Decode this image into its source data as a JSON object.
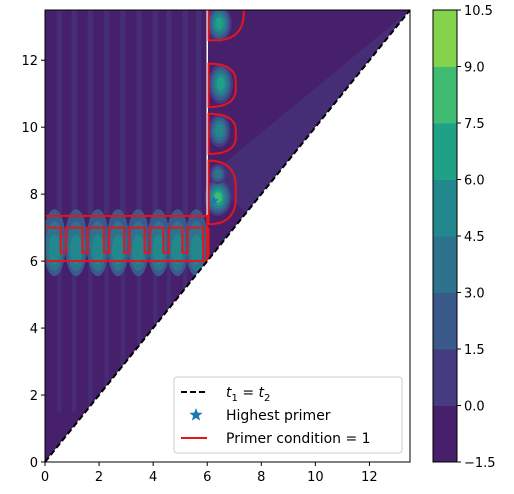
{
  "chart_data": {
    "type": "heatmap",
    "title": "",
    "xlabel": "",
    "ylabel": "",
    "xlim": [
      0,
      13.5
    ],
    "ylim": [
      0,
      13.5
    ],
    "x_ticks": [
      "0",
      "2",
      "4",
      "6",
      "8",
      "10",
      "12"
    ],
    "y_ticks": [
      "0",
      "2",
      "4",
      "6",
      "8",
      "10",
      "12"
    ],
    "colorbar": {
      "levels": [
        -1.5,
        0.0,
        1.5,
        3.0,
        4.5,
        6.0,
        7.5,
        9.0,
        10.5
      ],
      "tick_labels": [
        "−1.5",
        "0.0",
        "1.5",
        "3.0",
        "4.5",
        "6.0",
        "7.5",
        "9.0",
        "10.5"
      ],
      "band_colors": [
        "#46206a",
        "#453b82",
        "#3b5a8c",
        "#2e738e",
        "#23888d",
        "#1fa187",
        "#3fbc72",
        "#84d44b",
        "#cde11d"
      ],
      "colormap": "viridis"
    },
    "diagonal": {
      "from": [
        0,
        0
      ],
      "to": [
        13.5,
        13.5
      ],
      "style": "dashed",
      "color": "#000000"
    },
    "primer_boundary": {
      "color": "#e8141b",
      "horizontal_band": {
        "x": [
          0,
          6.0
        ],
        "y": [
          6.0,
          7.35
        ]
      },
      "vertical_band": {
        "x": [
          6.0,
          7.3
        ],
        "y": [
          6.0,
          13.5
        ]
      }
    },
    "highest_primer": {
      "x": 6.25,
      "y": 7.8,
      "color": "#1f77b4"
    },
    "legend": {
      "placement": "lower-right",
      "entries": [
        {
          "label_main": "t",
          "sub1": "1",
          "eq": " = t",
          "sub2": "2",
          "marker": "dashed-line"
        },
        {
          "label": "Highest primer",
          "marker": "star"
        },
        {
          "label": "Primer condition = 1",
          "marker": "red-line"
        }
      ]
    }
  }
}
